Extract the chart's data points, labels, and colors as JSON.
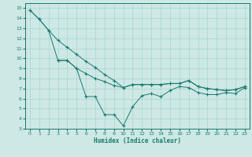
{
  "xlabel": "Humidex (Indice chaleur)",
  "bg_color": "#cde8e5",
  "grid_color": "#b0d8d4",
  "line_color": "#1a7a6e",
  "xlim": [
    -0.5,
    23.5
  ],
  "ylim": [
    3,
    15.5
  ],
  "xticks": [
    0,
    1,
    2,
    3,
    4,
    5,
    6,
    7,
    8,
    9,
    10,
    11,
    12,
    13,
    14,
    15,
    16,
    17,
    18,
    19,
    20,
    21,
    22,
    23
  ],
  "yticks": [
    3,
    4,
    5,
    6,
    7,
    8,
    9,
    10,
    11,
    12,
    13,
    14,
    15
  ],
  "line1_x": [
    0,
    1,
    2,
    3,
    4,
    5,
    6,
    7,
    8,
    9,
    10,
    11,
    12,
    13,
    14,
    15,
    16,
    17,
    18,
    19,
    20,
    21,
    22,
    23
  ],
  "line1_y": [
    14.8,
    13.9,
    12.8,
    9.8,
    9.8,
    9.0,
    6.2,
    6.2,
    4.4,
    4.4,
    3.3,
    5.2,
    6.3,
    6.5,
    6.2,
    6.8,
    7.2,
    7.1,
    6.6,
    6.4,
    6.4,
    6.6,
    6.5,
    7.1
  ],
  "line2_x": [
    0,
    1,
    2,
    3,
    4,
    5,
    6,
    7,
    8,
    9,
    10,
    11,
    12,
    13,
    14,
    15,
    16,
    17,
    18,
    19,
    20,
    21,
    22,
    23
  ],
  "line2_y": [
    14.8,
    13.9,
    12.8,
    11.8,
    11.1,
    10.4,
    9.7,
    9.1,
    8.4,
    7.8,
    7.1,
    7.4,
    7.4,
    7.4,
    7.4,
    7.5,
    7.5,
    7.8,
    7.2,
    7.0,
    6.9,
    6.8,
    6.9,
    7.2
  ],
  "line3_x": [
    3,
    4,
    5,
    6,
    7,
    8,
    9,
    10,
    11,
    12,
    13,
    14,
    15,
    16,
    17,
    18,
    19,
    20,
    21,
    22,
    23
  ],
  "line3_y": [
    9.8,
    9.8,
    9.0,
    8.5,
    8.0,
    7.7,
    7.3,
    7.1,
    7.4,
    7.4,
    7.4,
    7.4,
    7.5,
    7.5,
    7.8,
    7.2,
    7.0,
    6.9,
    6.8,
    6.9,
    7.2
  ]
}
